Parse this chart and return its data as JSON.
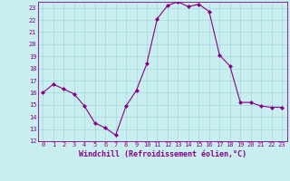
{
  "x": [
    0,
    1,
    2,
    3,
    4,
    5,
    6,
    7,
    8,
    9,
    10,
    11,
    12,
    13,
    14,
    15,
    16,
    17,
    18,
    19,
    20,
    21,
    22,
    23
  ],
  "y": [
    16.0,
    16.7,
    16.3,
    15.9,
    14.9,
    13.5,
    13.1,
    12.5,
    14.9,
    16.2,
    18.4,
    22.1,
    23.2,
    23.5,
    23.1,
    23.3,
    22.7,
    19.1,
    18.2,
    15.2,
    15.2,
    14.9,
    14.8,
    14.8
  ],
  "line_color": "#880088",
  "marker": "D",
  "marker_size": 2,
  "bg_color": "#c8eef0",
  "grid_color": "#a0d8dc",
  "xlabel": "Windchill (Refroidissement éolien,°C)",
  "xlabel_color": "#880088",
  "tick_color": "#880088",
  "ylim": [
    12,
    23.5
  ],
  "xlim": [
    -0.5,
    23.5
  ],
  "yticks": [
    12,
    13,
    14,
    15,
    16,
    17,
    18,
    19,
    20,
    21,
    22,
    23
  ],
  "xticks": [
    0,
    1,
    2,
    3,
    4,
    5,
    6,
    7,
    8,
    9,
    10,
    11,
    12,
    13,
    14,
    15,
    16,
    17,
    18,
    19,
    20,
    21,
    22,
    23
  ],
  "tick_fontsize": 5.0,
  "xlabel_fontsize": 6.0
}
